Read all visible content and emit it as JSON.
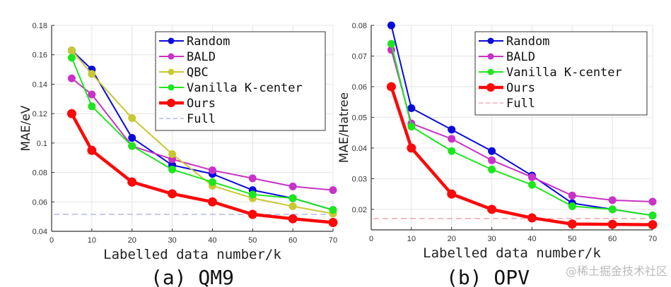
{
  "chart_data": [
    {
      "type": "line",
      "caption": "(a) QM9",
      "xlabel": "Labelled data number/k",
      "ylabel": "MAE/eV",
      "xlim": [
        0,
        70
      ],
      "ylim": [
        0.04,
        0.18
      ],
      "xticks": [
        0,
        10,
        20,
        30,
        40,
        50,
        60,
        70
      ],
      "yticks": [
        0.04,
        0.06,
        0.08,
        0.1,
        0.12,
        0.14,
        0.16,
        0.18
      ],
      "ytick_labels": [
        "0.04",
        "0.06",
        "0.08",
        "0.1",
        "0.12",
        "0.14",
        "0.16",
        "0.18"
      ],
      "grid": true,
      "legend_position": "top-right",
      "x": [
        5,
        10,
        20,
        30,
        40,
        50,
        60,
        70
      ],
      "series": [
        {
          "name": "Random",
          "color": "#0a0adc",
          "width": 2,
          "values": [
            0.163,
            0.15,
            0.1035,
            0.085,
            0.079,
            0.068,
            0.0625,
            0.0545
          ]
        },
        {
          "name": "BALD",
          "color": "#c832c8",
          "width": 2,
          "values": [
            0.144,
            0.133,
            0.098,
            0.089,
            0.0815,
            0.076,
            0.0705,
            0.068
          ]
        },
        {
          "name": "QBC",
          "color": "#c8c832",
          "width": 2,
          "values": [
            0.163,
            0.147,
            0.117,
            0.0925,
            0.071,
            0.0625,
            0.057,
            0.052
          ]
        },
        {
          "name": "Vanilla K-center",
          "color": "#1ee61e",
          "width": 2,
          "values": [
            0.158,
            0.125,
            0.098,
            0.082,
            0.0735,
            0.065,
            0.0625,
            0.0545
          ]
        },
        {
          "name": "Ours",
          "color": "#fa0a0a",
          "width": 4.5,
          "values": [
            0.12,
            0.095,
            0.0735,
            0.0655,
            0.06,
            0.0515,
            0.0485,
            0.046
          ]
        }
      ],
      "reference": {
        "name": "Full",
        "color": "#a8a8f0",
        "value": 0.0515
      }
    },
    {
      "type": "line",
      "caption": "(b) OPV",
      "xlabel": "Labelled data number/k",
      "ylabel": "MAE/Hatree",
      "xlim": [
        0,
        70
      ],
      "ylim": [
        0.0133,
        0.08
      ],
      "xticks": [
        0,
        10,
        20,
        30,
        40,
        50,
        60,
        70
      ],
      "yticks": [
        0.02,
        0.03,
        0.04,
        0.05,
        0.06,
        0.07,
        0.08
      ],
      "ytick_labels": [
        "0.02",
        "0.03",
        "0.04",
        "0.05",
        "0.06",
        "0.07",
        "0.08"
      ],
      "grid": true,
      "legend_position": "top-right",
      "x": [
        5,
        10,
        20,
        30,
        40,
        50,
        60,
        70
      ],
      "series": [
        {
          "name": "Random",
          "color": "#0a0adc",
          "width": 2,
          "values": [
            0.08,
            0.053,
            0.046,
            0.039,
            0.031,
            0.022,
            0.02,
            0.018
          ]
        },
        {
          "name": "BALD",
          "color": "#c832c8",
          "width": 2,
          "values": [
            0.072,
            0.048,
            0.043,
            0.036,
            0.0305,
            0.0245,
            0.023,
            0.0225
          ]
        },
        {
          "name": "Vanilla K-center",
          "color": "#1ee61e",
          "width": 2,
          "values": [
            0.074,
            0.047,
            0.039,
            0.033,
            0.028,
            0.021,
            0.02,
            0.018
          ]
        },
        {
          "name": "Ours",
          "color": "#fa0a0a",
          "width": 4.5,
          "values": [
            0.06,
            0.04,
            0.025,
            0.02,
            0.0172,
            0.0152,
            0.0151,
            0.015
          ]
        }
      ],
      "reference": {
        "name": "Full",
        "color": "#f09aa8",
        "value": 0.017
      }
    }
  ],
  "watermark": "@稀土掘金技术社区"
}
